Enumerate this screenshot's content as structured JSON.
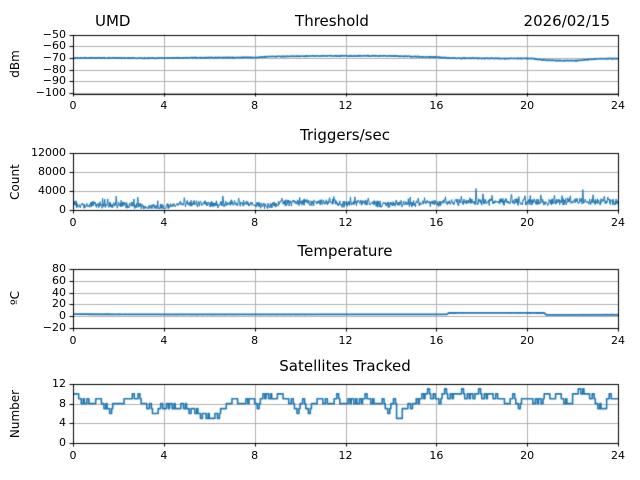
{
  "header": {
    "left": "UMD",
    "center": "Threshold",
    "right": "2026/02/15"
  },
  "colors": {
    "line": "#1f77b4",
    "grid": "#b0b0b0",
    "spine": "#000000",
    "text": "#000000",
    "background": "#ffffff"
  },
  "chart_data": [
    {
      "type": "line",
      "title": "Threshold",
      "ylabel": "dBm",
      "xlabel": "",
      "xlim": [
        0,
        24
      ],
      "ylim": [
        -100,
        -50
      ],
      "grid": true,
      "legend": "none",
      "xticks": [
        0,
        4,
        8,
        12,
        16,
        20,
        24
      ],
      "xtick_labels": [
        "0",
        "4",
        "8",
        "12",
        "16",
        "20",
        "24"
      ],
      "yticks": [
        -50,
        -60,
        -70,
        -80,
        -90,
        -100
      ],
      "ytick_labels": [
        "−50",
        "−60",
        "−70",
        "−80",
        "−90",
        "−100"
      ],
      "series": [
        {
          "name": "threshold_dbm",
          "style": "noisy-line",
          "line_width": 1.5,
          "noise": 0.35,
          "samples_per_hour": 60,
          "anchors": [
            [
              0,
              -70.1
            ],
            [
              1,
              -70.0
            ],
            [
              2,
              -70.1
            ],
            [
              3,
              -70.2
            ],
            [
              4,
              -70.1
            ],
            [
              5,
              -69.9
            ],
            [
              6,
              -69.8
            ],
            [
              7,
              -69.7
            ],
            [
              8,
              -69.6
            ],
            [
              8.7,
              -68.9
            ],
            [
              9.5,
              -68.7
            ],
            [
              10.5,
              -68.4
            ],
            [
              11.5,
              -68.3
            ],
            [
              12.5,
              -68.3
            ],
            [
              13,
              -68.2
            ],
            [
              13.5,
              -68.4
            ],
            [
              14,
              -68.3
            ],
            [
              14.5,
              -68.6
            ],
            [
              15,
              -68.9
            ],
            [
              15.5,
              -69.1
            ],
            [
              16,
              -69.4
            ],
            [
              16.5,
              -70.0
            ],
            [
              17,
              -70.3
            ],
            [
              17.5,
              -70.2
            ],
            [
              18,
              -70.4
            ],
            [
              18.5,
              -70.3
            ],
            [
              19,
              -70.6
            ],
            [
              19.5,
              -70.4
            ],
            [
              20,
              -70.5
            ],
            [
              20.3,
              -70.6
            ],
            [
              20.6,
              -71.6
            ],
            [
              21,
              -72.1
            ],
            [
              21.5,
              -72.3
            ],
            [
              22,
              -72.4
            ],
            [
              22.3,
              -72.2
            ],
            [
              22.6,
              -71.6
            ],
            [
              22.9,
              -71.0
            ],
            [
              23.2,
              -70.7
            ],
            [
              23.6,
              -70.6
            ],
            [
              24,
              -70.6
            ]
          ]
        }
      ]
    },
    {
      "type": "line",
      "title": "Triggers/sec",
      "ylabel": "Count",
      "xlabel": "",
      "xlim": [
        0,
        24
      ],
      "ylim": [
        0,
        12000
      ],
      "grid": true,
      "legend": "none",
      "xticks": [
        0,
        4,
        8,
        12,
        16,
        20,
        24
      ],
      "xtick_labels": [
        "0",
        "4",
        "8",
        "12",
        "16",
        "20",
        "24"
      ],
      "yticks": [
        0,
        4000,
        8000,
        12000
      ],
      "ytick_labels": [
        "0",
        "4000",
        "8000",
        "12000"
      ],
      "series": [
        {
          "name": "triggers_per_sec",
          "style": "noisy-band",
          "line_width": 1.0,
          "noise": 550,
          "clip_min": 250,
          "samples_per_hour": 60,
          "anchors": [
            [
              0,
              1200
            ],
            [
              0.5,
              1150
            ],
            [
              1,
              1300
            ],
            [
              1.5,
              1200
            ],
            [
              2,
              1150
            ],
            [
              2.5,
              1200
            ],
            [
              3,
              1000
            ],
            [
              3.3,
              800
            ],
            [
              3.7,
              700
            ],
            [
              4.1,
              750
            ],
            [
              4.4,
              1100
            ],
            [
              4.7,
              1450
            ],
            [
              5,
              1500
            ],
            [
              5.5,
              1500
            ],
            [
              6,
              1400
            ],
            [
              6.3,
              1150
            ],
            [
              6.6,
              1300
            ],
            [
              7,
              1500
            ],
            [
              7.5,
              1600
            ],
            [
              8,
              1450
            ],
            [
              8.4,
              1000
            ],
            [
              8.7,
              850
            ],
            [
              9,
              1500
            ],
            [
              9.5,
              1650
            ],
            [
              10,
              1700
            ],
            [
              10.5,
              1700
            ],
            [
              11,
              1750
            ],
            [
              11.5,
              1800
            ],
            [
              11.9,
              1350
            ],
            [
              12.2,
              1500
            ],
            [
              12.7,
              1600
            ],
            [
              13.2,
              1500
            ],
            [
              13.6,
              1400
            ],
            [
              14,
              1350
            ],
            [
              14.5,
              1400
            ],
            [
              15,
              1500
            ],
            [
              15.5,
              1550
            ],
            [
              16,
              1600
            ],
            [
              16.5,
              1700
            ],
            [
              17,
              1750
            ],
            [
              17.5,
              1800
            ],
            [
              18,
              1850
            ],
            [
              18.5,
              1800
            ],
            [
              19,
              1900
            ],
            [
              19.5,
              1850
            ],
            [
              20,
              1800
            ],
            [
              20.5,
              1850
            ],
            [
              21,
              1800
            ],
            [
              21.5,
              1850
            ],
            [
              22,
              1900
            ],
            [
              22.5,
              1950
            ],
            [
              23,
              1900
            ],
            [
              23.5,
              1850
            ],
            [
              24,
              1800
            ]
          ],
          "spikes": [
            [
              1.9,
              2900
            ],
            [
              2.85,
              2700
            ],
            [
              4.9,
              2600
            ],
            [
              6.6,
              2950
            ],
            [
              7.3,
              2500
            ],
            [
              9.2,
              2500
            ],
            [
              11.3,
              2600
            ],
            [
              13.0,
              2500
            ],
            [
              15.2,
              2500
            ],
            [
              16.4,
              2800
            ],
            [
              17.1,
              2900
            ],
            [
              17.75,
              4500
            ],
            [
              18.05,
              3400
            ],
            [
              18.45,
              3100
            ],
            [
              19.3,
              3300
            ],
            [
              19.9,
              3000
            ],
            [
              20.6,
              3200
            ],
            [
              21.2,
              3100
            ],
            [
              21.9,
              3000
            ],
            [
              22.45,
              4300
            ],
            [
              22.9,
              3200
            ],
            [
              23.4,
              2900
            ]
          ]
        }
      ]
    },
    {
      "type": "line",
      "title": "Temperature",
      "ylabel": "ºC",
      "xlabel": "",
      "xlim": [
        0,
        24
      ],
      "ylim": [
        -20,
        80
      ],
      "grid": true,
      "legend": "none",
      "xticks": [
        0,
        4,
        8,
        12,
        16,
        20,
        24
      ],
      "xtick_labels": [
        "0",
        "4",
        "8",
        "12",
        "16",
        "20",
        "24"
      ],
      "yticks": [
        -20,
        0,
        20,
        40,
        60,
        80
      ],
      "ytick_labels": [
        "−20",
        "0",
        "20",
        "40",
        "60",
        "80"
      ],
      "series": [
        {
          "name": "temperature_c",
          "style": "noisy-line",
          "line_width": 1.8,
          "noise": 0.12,
          "samples_per_hour": 60,
          "anchors": [
            [
              0,
              3.5
            ],
            [
              1,
              3.3
            ],
            [
              2,
              3.2
            ],
            [
              4,
              3.0
            ],
            [
              6,
              3.0
            ],
            [
              8,
              3.0
            ],
            [
              10,
              3.0
            ],
            [
              12,
              3.1
            ],
            [
              14,
              3.1
            ],
            [
              16.45,
              3.1
            ],
            [
              16.55,
              5.5
            ],
            [
              18,
              5.6
            ],
            [
              20.75,
              5.5
            ],
            [
              20.85,
              2.2
            ],
            [
              22,
              2.3
            ],
            [
              24,
              2.4
            ]
          ]
        }
      ]
    },
    {
      "type": "step",
      "title": "Satellites Tracked",
      "ylabel": "Number",
      "xlabel": "",
      "xlim": [
        0,
        24
      ],
      "ylim": [
        0,
        12
      ],
      "grid": true,
      "legend": "none",
      "xticks": [
        0,
        4,
        8,
        12,
        16,
        20,
        24
      ],
      "xtick_labels": [
        "0",
        "4",
        "8",
        "12",
        "16",
        "20",
        "24"
      ],
      "yticks": [
        0,
        4,
        8,
        12
      ],
      "ytick_labels": [
        "0",
        "4",
        "8",
        "12"
      ],
      "line_width": 1.6,
      "step_hours": 0.25,
      "value_min": 5,
      "value_max": 11,
      "values": [
        10,
        9,
        8,
        8,
        9,
        8,
        7,
        8,
        8,
        9,
        9,
        9,
        8,
        7,
        6,
        7,
        7,
        8,
        7,
        8,
        7,
        7,
        6,
        6,
        5,
        6,
        7,
        8,
        9,
        8,
        8,
        9,
        8,
        9,
        10,
        9,
        10,
        9,
        8,
        7,
        8,
        7,
        8,
        9,
        8,
        8,
        9,
        8,
        8,
        9,
        8,
        9,
        9,
        8,
        8,
        7,
        8,
        5,
        7,
        8,
        8,
        9,
        10,
        9,
        9,
        10,
        9,
        10,
        10,
        9,
        10,
        10,
        9,
        10,
        9,
        9,
        8,
        9,
        8,
        9,
        9,
        8,
        9,
        10,
        9,
        10,
        9,
        8,
        10,
        11,
        10,
        9,
        8,
        7,
        9,
        9
      ]
    }
  ]
}
